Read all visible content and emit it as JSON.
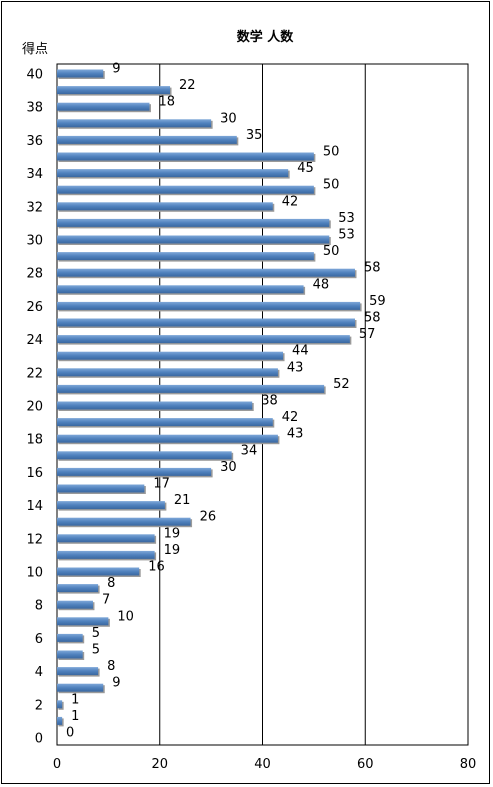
{
  "chart_data": {
    "type": "bar",
    "orientation": "horizontal",
    "title": "数学 人数",
    "ylabel": "得点",
    "xlabel": "",
    "xlim": [
      0,
      80
    ],
    "x_ticks": [
      "0",
      "20",
      "40",
      "60",
      "80"
    ],
    "grid": true,
    "legend": "none",
    "bar_color": "#4F81BD",
    "categories": [
      "0",
      "1",
      "2",
      "3",
      "4",
      "5",
      "6",
      "7",
      "8",
      "9",
      "10",
      "11",
      "12",
      "13",
      "14",
      "15",
      "16",
      "17",
      "18",
      "19",
      "20",
      "21",
      "22",
      "23",
      "24",
      "25",
      "26",
      "27",
      "28",
      "29",
      "30",
      "31",
      "32",
      "33",
      "34",
      "35",
      "36",
      "37",
      "38",
      "39",
      "40"
    ],
    "y_tick_labels": [
      "0",
      "2",
      "4",
      "6",
      "8",
      "10",
      "12",
      "14",
      "16",
      "18",
      "20",
      "22",
      "24",
      "26",
      "28",
      "30",
      "32",
      "34",
      "36",
      "38",
      "40"
    ],
    "values": [
      0,
      1,
      1,
      9,
      8,
      5,
      5,
      10,
      7,
      8,
      16,
      19,
      19,
      26,
      21,
      17,
      30,
      34,
      43,
      42,
      38,
      52,
      43,
      44,
      57,
      58,
      59,
      48,
      58,
      50,
      53,
      53,
      42,
      50,
      45,
      50,
      35,
      30,
      18,
      22,
      9
    ]
  }
}
